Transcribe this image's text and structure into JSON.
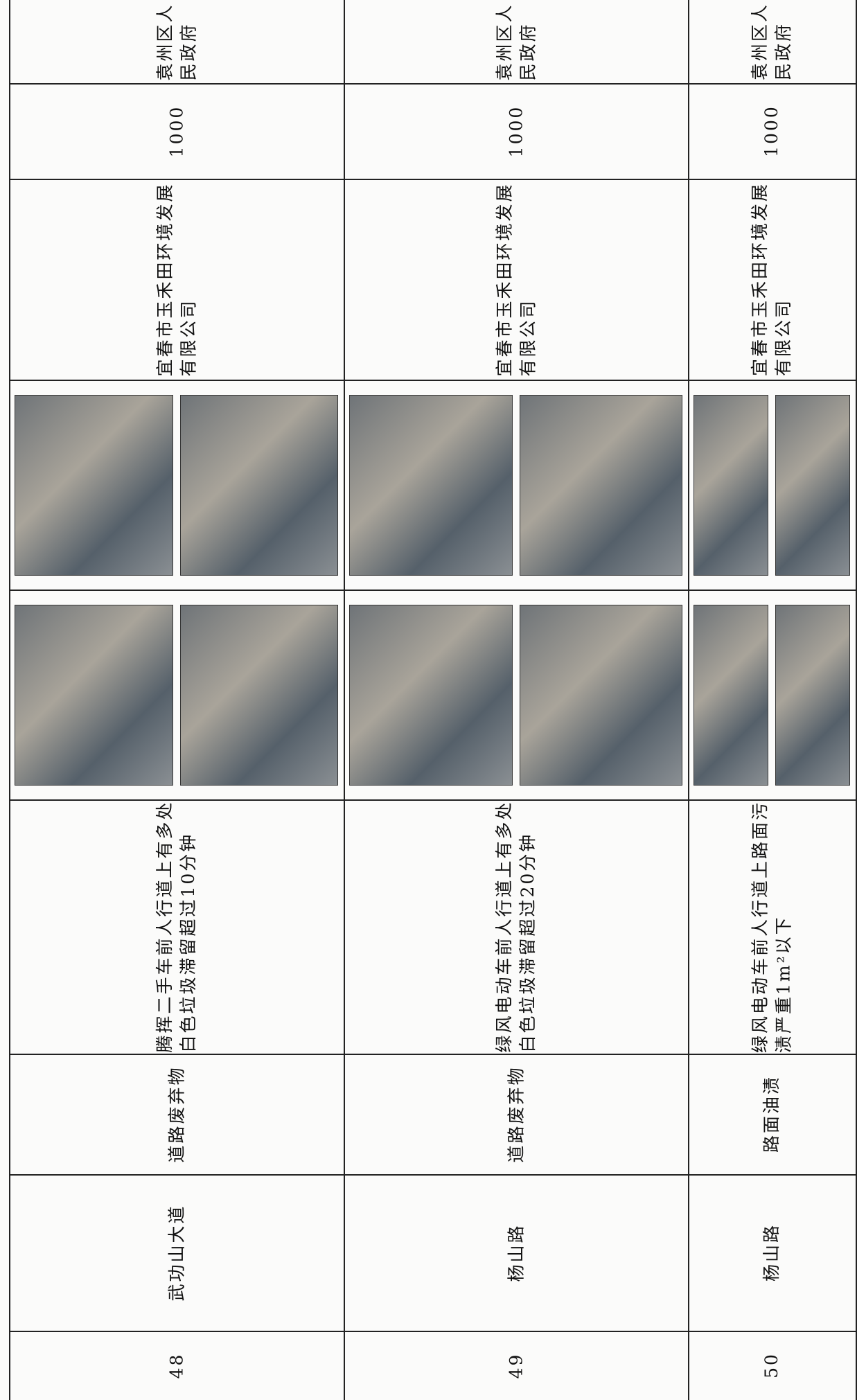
{
  "table": {
    "rows": [
      {
        "no": "48",
        "road": "武功山大道",
        "type": "道路废弃物",
        "description": "腾挥二手车前人行道上有多处\n白色垃圾滞留超过10分钟",
        "company": "宜春市玉禾田环境发展\n有限公司",
        "amount": "1000",
        "government": "袁州区人\n民政府"
      },
      {
        "no": "49",
        "road": "杨山路",
        "type": "道路废弃物",
        "description": "绿风电动车前人行道上有多处\n白色垃圾滞留超过20分钟",
        "company": "宜春市玉禾田环境发展\n有限公司",
        "amount": "1000",
        "government": "袁州区人\n民政府"
      },
      {
        "no": "50",
        "road": "杨山路",
        "type": "路面油渍",
        "description": "绿风电动车前人行道上路面污\n渍严重1m²以下",
        "company": "宜春市玉禾田环境发展\n有限公司",
        "amount": "1000",
        "government": "袁州区人\n民政府"
      }
    ]
  }
}
